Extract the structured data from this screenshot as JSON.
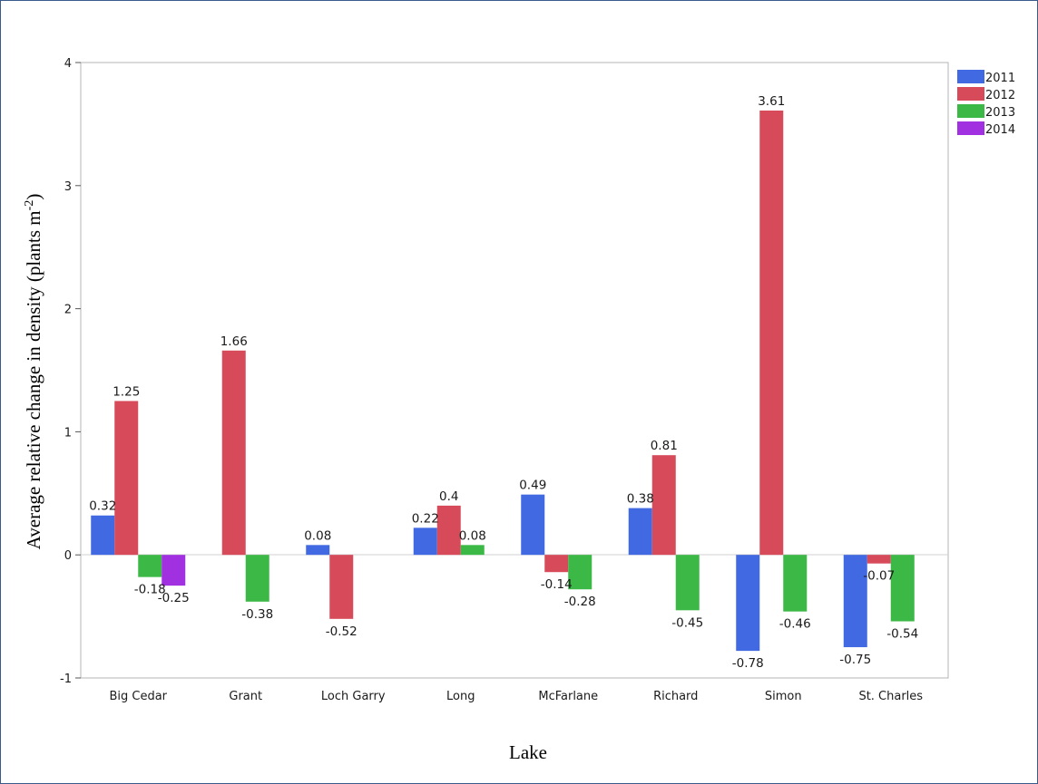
{
  "chart_data": {
    "type": "bar",
    "title": "",
    "xlabel": "Lake",
    "ylabel": "Average relative change in density (plants m",
    "ylabel_sup": "-2",
    "ylabel_close": ")",
    "ylim": [
      -1,
      4
    ],
    "yticks": [
      "-1",
      "0",
      "1",
      "2",
      "3",
      "4"
    ],
    "grid": false,
    "legend_position": "top-right",
    "categories": [
      "Big Cedar",
      "Grant",
      "Loch Garry",
      "Long",
      "McFarlane",
      "Richard",
      "Simon",
      "St. Charles"
    ],
    "series": [
      {
        "name": "2011",
        "color": "#4169e1",
        "values": [
          0.32,
          null,
          0.08,
          0.22,
          0.49,
          0.38,
          -0.78,
          -0.75
        ]
      },
      {
        "name": "2012",
        "color": "#d64a5a",
        "values": [
          1.25,
          1.66,
          -0.52,
          0.4,
          -0.14,
          0.81,
          3.61,
          -0.07
        ]
      },
      {
        "name": "2013",
        "color": "#3cb846",
        "values": [
          -0.18,
          -0.38,
          null,
          0.08,
          -0.28,
          -0.45,
          -0.46,
          -0.54
        ]
      },
      {
        "name": "2014",
        "color": "#a030e0",
        "values": [
          -0.25,
          null,
          null,
          null,
          null,
          null,
          null,
          null
        ]
      }
    ],
    "data_labels": [
      [
        "0.32",
        null,
        "0.08",
        "0.22",
        "0.49",
        "0.38",
        "-0.78",
        "-0.75"
      ],
      [
        "1.25",
        "1.66",
        "-0.52",
        "0.4",
        "-0.14",
        "0.81",
        "3.61",
        "-0.07"
      ],
      [
        "-0.18",
        "-0.38",
        null,
        "0.08",
        "-0.28",
        "-0.45",
        "-0.46",
        "-0.54"
      ],
      [
        "-0.25",
        null,
        null,
        null,
        null,
        null,
        null,
        null
      ]
    ]
  }
}
